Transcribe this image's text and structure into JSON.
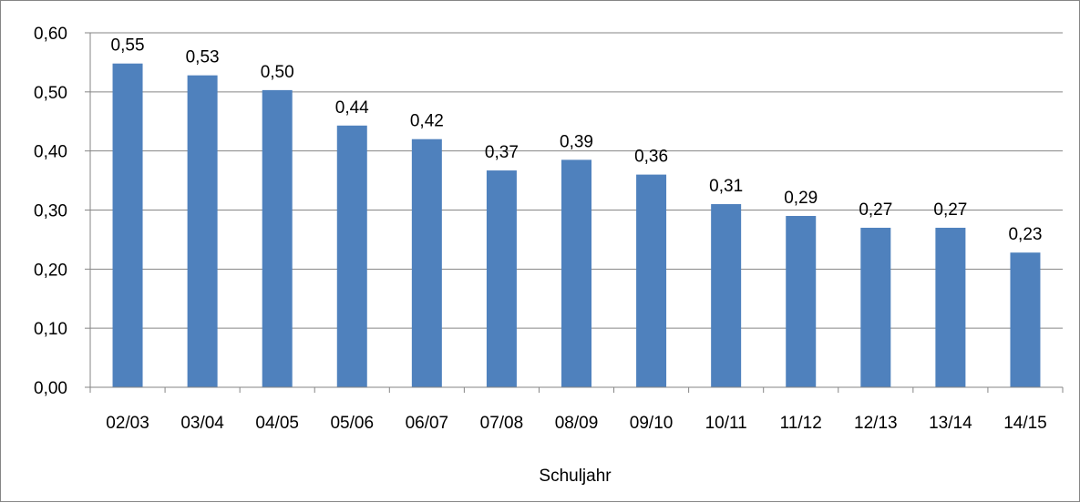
{
  "chart_data": {
    "type": "bar",
    "categories": [
      "02/03",
      "03/04",
      "04/05",
      "05/06",
      "06/07",
      "07/08",
      "08/09",
      "09/10",
      "10/11",
      "11/12",
      "12/13",
      "13/14",
      "14/15"
    ],
    "values": [
      0.548,
      0.528,
      0.503,
      0.443,
      0.42,
      0.367,
      0.385,
      0.36,
      0.31,
      0.29,
      0.27,
      0.27,
      0.228
    ],
    "data_labels": [
      "0,55",
      "0,53",
      "0,50",
      "0,44",
      "0,42",
      "0,37",
      "0,39",
      "0,36",
      "0,31",
      "0,29",
      "0,27",
      "0,27",
      "0,23"
    ],
    "y_ticks": [
      "0,00",
      "0,10",
      "0,20",
      "0,30",
      "0,40",
      "0,50",
      "0,60"
    ],
    "title": "",
    "xlabel": "Schuljahr",
    "ylabel": "",
    "ylim": [
      0,
      0.6
    ],
    "grid": true,
    "legend": "none",
    "bar_color": "#4F81BD",
    "gridline_color": "#868686"
  }
}
